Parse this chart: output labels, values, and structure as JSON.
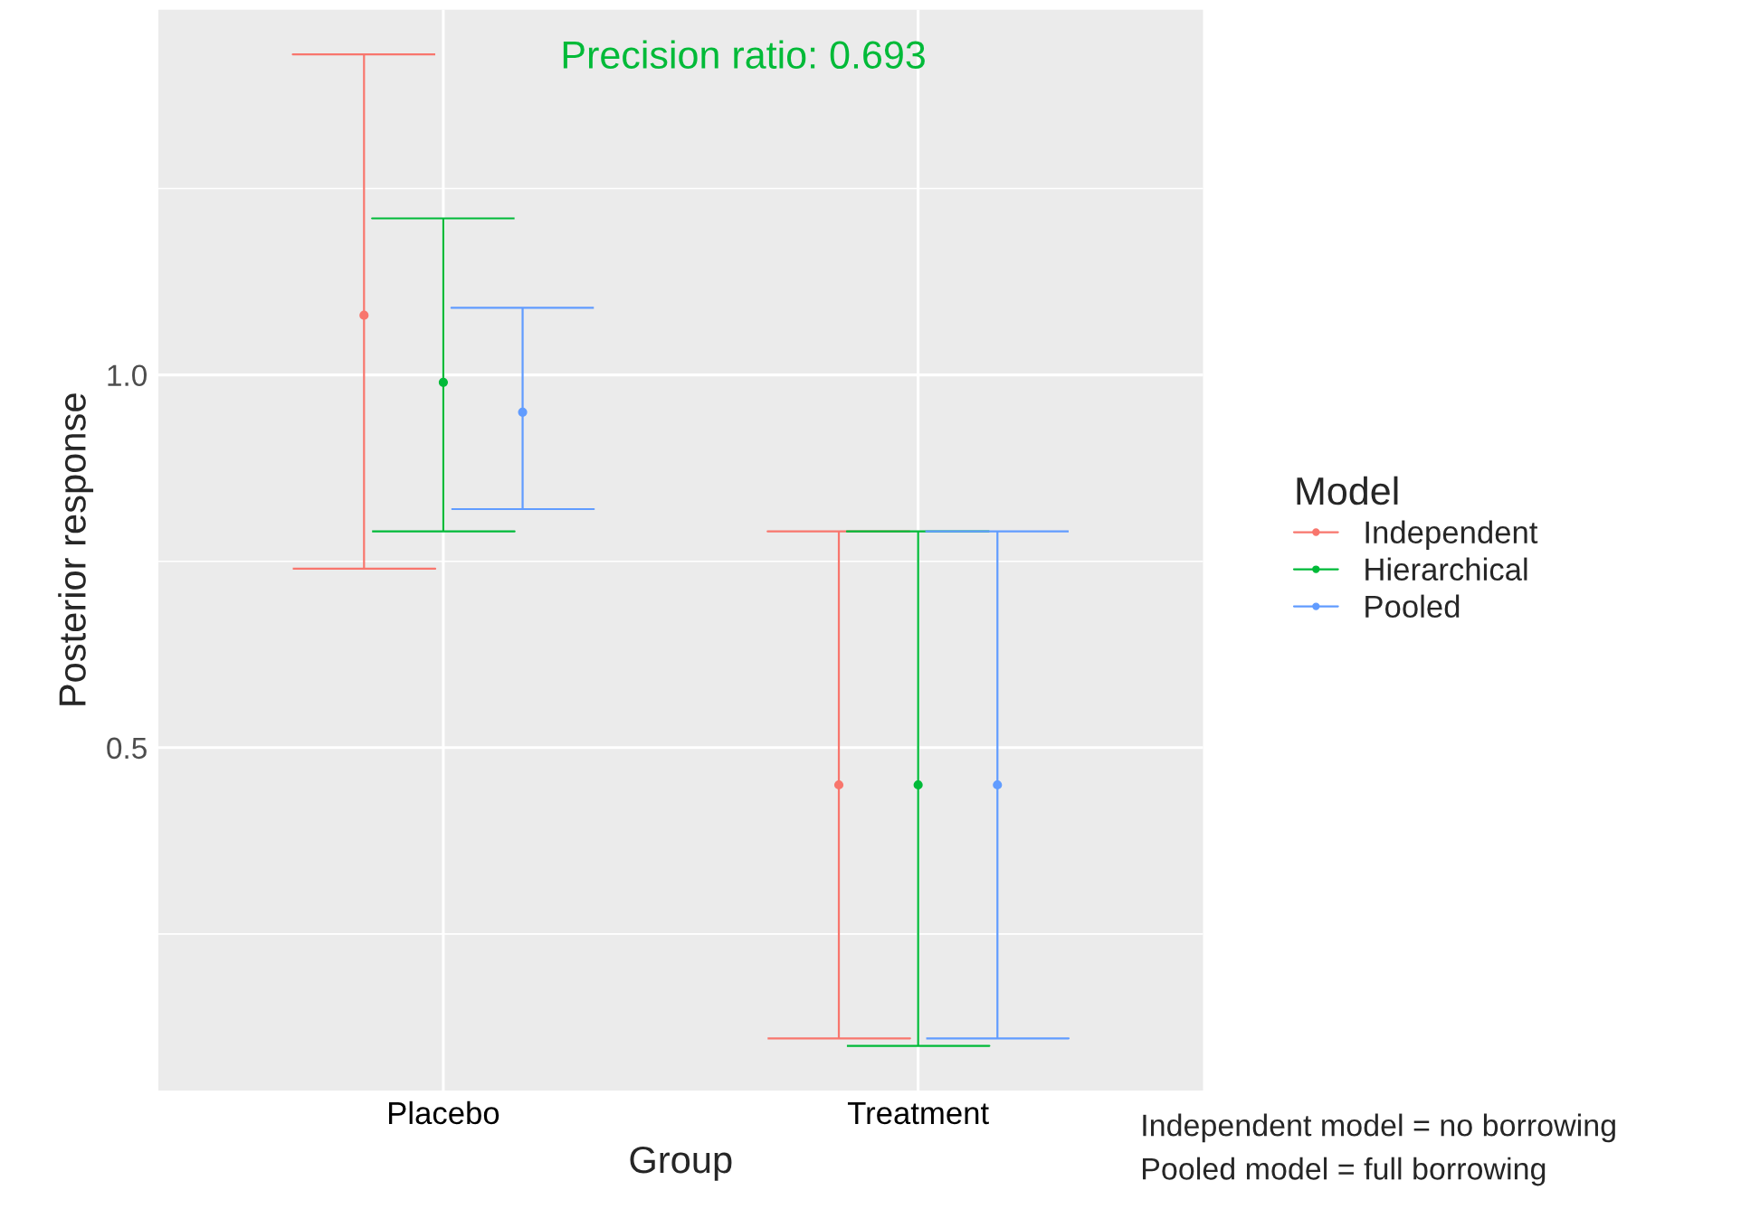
{
  "chart_data": {
    "type": "scatter",
    "xlabel": "Group",
    "ylabel": "Posterior response",
    "legend_title": "Model",
    "categories": [
      "Placebo",
      "Treatment"
    ],
    "series": [
      {
        "name": "Independent",
        "color": "#f8766d",
        "values": [
          1.08,
          0.45
        ],
        "errors": [
          [
            0.74,
            1.43
          ],
          [
            0.11,
            0.79
          ]
        ]
      },
      {
        "name": "Hierarchical",
        "color": "#00ba38",
        "values": [
          0.99,
          0.45
        ],
        "errors": [
          [
            0.79,
            1.21
          ],
          [
            0.1,
            0.79
          ]
        ]
      },
      {
        "name": "Pooled",
        "color": "#619cff",
        "values": [
          0.95,
          0.45
        ],
        "errors": [
          [
            0.82,
            1.09
          ],
          [
            0.11,
            0.79
          ]
        ]
      }
    ],
    "ylim": [
      0.04,
      1.49
    ],
    "yticks": [
      0.5,
      {
        "value": 1.0,
        "label": "1.0"
      }
    ],
    "grid": true,
    "legend": "right",
    "marker": "circle",
    "annotations": [
      "Precision ratio: 0.693",
      "Independent model = no borrowing",
      "Pooled model = full borrowing"
    ]
  }
}
